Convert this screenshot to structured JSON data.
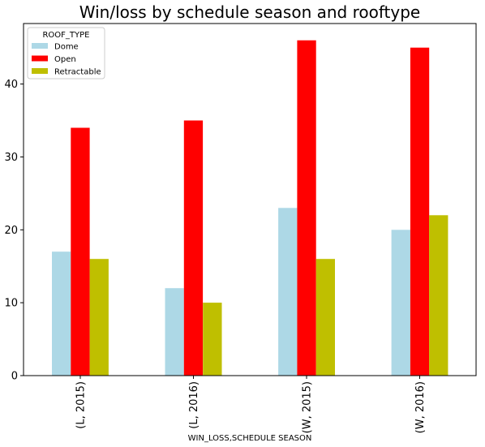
{
  "chart_data": {
    "type": "bar",
    "title": "Win/loss by schedule season and rooftype",
    "xlabel": "WIN_LOSS,SCHEDULE SEASON",
    "ylabel": "",
    "categories": [
      "(L, 2015)",
      "(L, 2016)",
      "(W, 2015)",
      "(W, 2016)"
    ],
    "series": [
      {
        "name": "Dome",
        "values": [
          17,
          12,
          23,
          20
        ],
        "color": "#add8e6"
      },
      {
        "name": "Open",
        "values": [
          34,
          35,
          46,
          45
        ],
        "color": "#ff0000"
      },
      {
        "name": "Retractable",
        "values": [
          16,
          10,
          16,
          22
        ],
        "color": "#bfbf00"
      }
    ],
    "ylim": [
      0,
      48.3
    ],
    "yticks": [
      0,
      10,
      20,
      30,
      40
    ],
    "grid": false,
    "legend": {
      "title": "ROOF_TYPE",
      "placement": "top-left"
    }
  }
}
